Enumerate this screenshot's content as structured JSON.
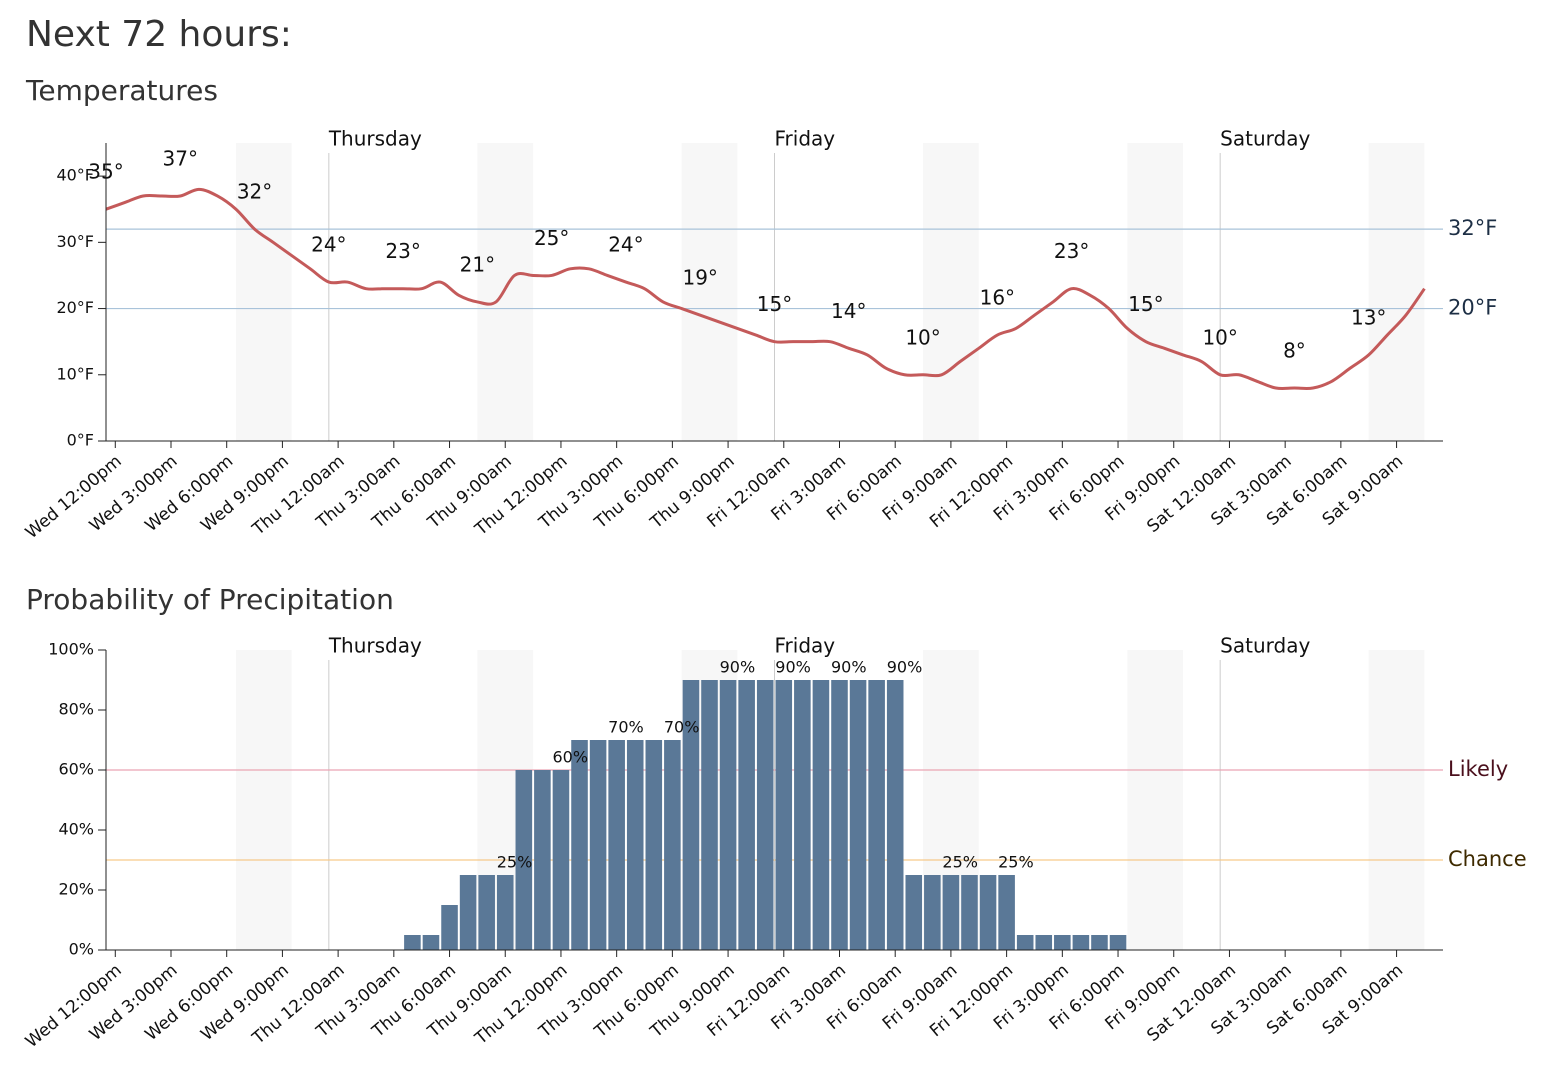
{
  "title": "Next 72 hours:",
  "chart_data": [
    {
      "type": "line",
      "title": "Temperatures",
      "color": "#c45a5a",
      "categories": [
        "Wed 12:00pm",
        null,
        null,
        "Wed 3:00pm",
        null,
        null,
        "Wed 6:00pm",
        null,
        null,
        "Wed 9:00pm",
        null,
        null,
        "Thu 12:00am",
        null,
        null,
        "Thu 3:00am",
        null,
        null,
        "Thu 6:00am",
        null,
        null,
        "Thu 9:00am",
        null,
        null,
        "Thu 12:00pm",
        null,
        null,
        "Thu 3:00pm",
        null,
        null,
        "Thu 6:00pm",
        null,
        null,
        "Thu 9:00pm",
        null,
        null,
        "Fri 12:00am",
        null,
        null,
        "Fri 3:00am",
        null,
        null,
        "Fri 6:00am",
        null,
        null,
        "Fri 9:00am",
        null,
        null,
        "Fri 12:00pm",
        null,
        null,
        "Fri 3:00pm",
        null,
        null,
        "Fri 6:00pm",
        null,
        null,
        "Fri 9:00pm",
        null,
        null,
        "Sat 12:00am",
        null,
        null,
        "Sat 3:00am",
        null,
        null,
        "Sat 6:00am",
        null,
        null,
        "Sat 9:00am",
        null,
        null
      ],
      "values": [
        35,
        36,
        37,
        37,
        37,
        38,
        37,
        35,
        32,
        30,
        28,
        26,
        24,
        24,
        23,
        23,
        23,
        23,
        24,
        22,
        21,
        21,
        25,
        25,
        25,
        26,
        26,
        25,
        24,
        23,
        21,
        20,
        19,
        18,
        17,
        16,
        15,
        15,
        15,
        15,
        14,
        13,
        11,
        10,
        10,
        10,
        12,
        14,
        16,
        17,
        19,
        21,
        23,
        22,
        20,
        17,
        15,
        14,
        13,
        12,
        10,
        10,
        9,
        8,
        8,
        8,
        9,
        11,
        13,
        16,
        19,
        23
      ],
      "value_labels": [
        "35°",
        null,
        null,
        null,
        "37°",
        null,
        null,
        null,
        "32°",
        null,
        null,
        null,
        "24°",
        null,
        null,
        null,
        "23°",
        null,
        null,
        null,
        "21°",
        null,
        null,
        null,
        "25°",
        null,
        null,
        null,
        "24°",
        null,
        null,
        null,
        "19°",
        null,
        null,
        null,
        "15°",
        null,
        null,
        null,
        "14°",
        null,
        null,
        null,
        "10°",
        null,
        null,
        null,
        "16°",
        null,
        null,
        null,
        "23°",
        null,
        null,
        null,
        "15°",
        null,
        null,
        null,
        "10°",
        null,
        null,
        null,
        "8°",
        null,
        null,
        null,
        "13°",
        null,
        null,
        null
      ],
      "ylim": [
        0,
        45
      ],
      "yticks": [
        {
          "value": 0,
          "label": "0°F"
        },
        {
          "value": 10,
          "label": "10°F"
        },
        {
          "value": 20,
          "label": "20°F"
        },
        {
          "value": 30,
          "label": "30°F"
        },
        {
          "value": 40,
          "label": "40°F"
        }
      ],
      "reference_lines": [
        {
          "value": 32,
          "label": "32°F",
          "color": "#a9c3da",
          "text_color": "#1d2f45"
        },
        {
          "value": 20,
          "label": "20°F",
          "color": "#a9c3da",
          "text_color": "#1d2f45"
        }
      ],
      "day_markers": [
        {
          "at": "Thu 12:00am",
          "label": "Thursday"
        },
        {
          "at": "Fri 12:00am",
          "label": "Friday"
        },
        {
          "at": "Sat 12:00am",
          "label": "Saturday"
        }
      ]
    },
    {
      "type": "bar",
      "title": "Probability of Precipitation",
      "color": "#5a7897",
      "categories": [
        "Wed 12:00pm",
        null,
        null,
        "Wed 3:00pm",
        null,
        null,
        "Wed 6:00pm",
        null,
        null,
        "Wed 9:00pm",
        null,
        null,
        "Thu 12:00am",
        null,
        null,
        "Thu 3:00am",
        null,
        null,
        "Thu 6:00am",
        null,
        null,
        "Thu 9:00am",
        null,
        null,
        "Thu 12:00pm",
        null,
        null,
        "Thu 3:00pm",
        null,
        null,
        "Thu 6:00pm",
        null,
        null,
        "Thu 9:00pm",
        null,
        null,
        "Fri 12:00am",
        null,
        null,
        "Fri 3:00am",
        null,
        null,
        "Fri 6:00am",
        null,
        null,
        "Fri 9:00am",
        null,
        null,
        "Fri 12:00pm",
        null,
        null,
        "Fri 3:00pm",
        null,
        null,
        "Fri 6:00pm",
        null,
        null,
        "Fri 9:00pm",
        null,
        null,
        "Sat 12:00am",
        null,
        null,
        "Sat 3:00am",
        null,
        null,
        "Sat 6:00am",
        null,
        null,
        "Sat 9:00am",
        null,
        null
      ],
      "values": [
        0,
        0,
        0,
        0,
        0,
        0,
        0,
        0,
        0,
        0,
        0,
        0,
        0,
        0,
        0,
        0,
        5,
        5,
        15,
        25,
        25,
        25,
        60,
        60,
        60,
        70,
        70,
        70,
        70,
        70,
        70,
        90,
        90,
        90,
        90,
        90,
        90,
        90,
        90,
        90,
        90,
        90,
        90,
        25,
        25,
        25,
        25,
        25,
        25,
        5,
        5,
        5,
        5,
        5,
        5,
        0,
        0,
        0,
        0,
        0,
        0,
        0,
        0,
        0,
        0,
        0,
        0,
        0,
        0,
        0,
        0,
        0
      ],
      "value_labels": [
        null,
        null,
        null,
        null,
        null,
        null,
        null,
        null,
        null,
        null,
        null,
        null,
        null,
        null,
        null,
        null,
        null,
        null,
        null,
        null,
        null,
        "25%",
        null,
        null,
        "60%",
        null,
        null,
        "70%",
        null,
        null,
        "70%",
        null,
        null,
        "90%",
        null,
        null,
        "90%",
        null,
        null,
        "90%",
        null,
        null,
        "90%",
        null,
        null,
        "25%",
        null,
        null,
        "25%",
        null,
        null,
        null,
        null,
        null,
        null,
        null,
        null,
        null,
        null,
        null,
        null,
        null,
        null,
        null,
        null,
        null,
        null,
        null,
        null,
        null,
        null,
        null
      ],
      "ylim": [
        0,
        100
      ],
      "yticks": [
        {
          "value": 0,
          "label": "0%"
        },
        {
          "value": 20,
          "label": "20%"
        },
        {
          "value": 40,
          "label": "40%"
        },
        {
          "value": 60,
          "label": "60%"
        },
        {
          "value": 80,
          "label": "80%"
        },
        {
          "value": 100,
          "label": "100%"
        }
      ],
      "reference_lines": [
        {
          "value": 60,
          "label": "Likely",
          "color": "#eaa5b3",
          "text_color": "#4a0f1c"
        },
        {
          "value": 30,
          "label": "Chance",
          "color": "#f6c98a",
          "text_color": "#3e2a00"
        }
      ],
      "day_markers": [
        {
          "at": "Thu 12:00am",
          "label": "Thursday"
        },
        {
          "at": "Fri 12:00am",
          "label": "Friday"
        },
        {
          "at": "Sat 12:00am",
          "label": "Saturday"
        }
      ]
    }
  ]
}
